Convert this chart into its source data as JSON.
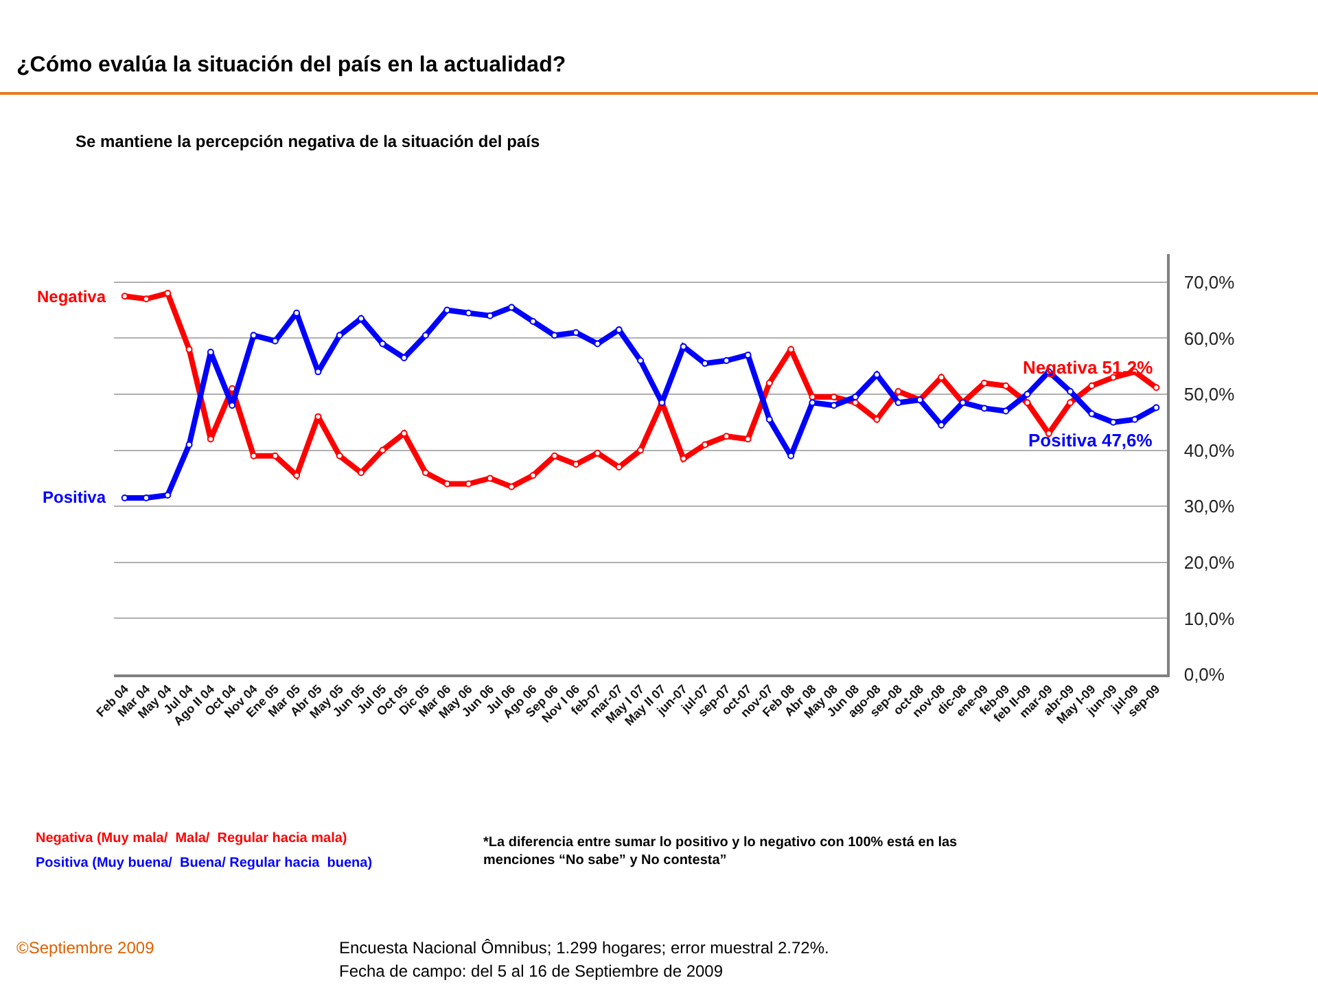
{
  "chart_data": {
    "type": "line",
    "title": "¿Cómo evalúa la situación del país en la actualidad?",
    "subtitle": "Se mantiene la percepción negativa de la situación del país",
    "categories": [
      "Feb 04",
      "Mar 04",
      "May 04",
      "Jul 04",
      "Ago II 04",
      "Oct 04",
      "Nov 04",
      "Ene 05",
      "Mar 05",
      "Abr 05",
      "May 05",
      "Jun 05",
      "Jul 05",
      "Oct 05",
      "Dic 05",
      "Mar 06",
      "May 06",
      "Jun 06",
      "Jul 06",
      "Ago 06",
      "Sep 06",
      "Nov I 06",
      "feb-07",
      "mar-07",
      "May I 07",
      "May II 07",
      "jun-07",
      "jul-07",
      "sep-07",
      "oct-07",
      "nov-07",
      "Feb 08",
      "Abr 08",
      "May 08",
      "Jun 08",
      "ago-08",
      "sep-08",
      "oct-08",
      "nov-08",
      "dic-08",
      "ene-09",
      "feb-09",
      "feb II-09",
      "mar-09",
      "abr-09",
      "May I-09",
      "jun-09",
      "jul-09",
      "sep-09"
    ],
    "series": [
      {
        "name": "Negativa",
        "color": "#ff0000",
        "values": [
          67.5,
          67,
          68,
          58,
          42,
          51,
          39,
          39,
          35.5,
          46,
          39,
          36,
          40,
          43,
          36,
          34,
          34,
          35,
          33.5,
          35.5,
          39,
          37.5,
          39.5,
          37,
          40,
          48.5,
          38.5,
          41,
          42.5,
          42,
          52,
          58,
          49.5,
          49.5,
          48.5,
          45.5,
          50.5,
          49,
          53,
          48.5,
          52,
          51.5,
          48.5,
          43,
          48.5,
          51.5,
          53,
          54,
          51.2
        ]
      },
      {
        "name": "Positiva",
        "color": "#0000ff",
        "values": [
          31.5,
          31.5,
          32,
          41,
          57.5,
          48,
          60.5,
          59.5,
          64.5,
          54,
          60.5,
          63.5,
          59,
          56.5,
          60.5,
          65,
          64.5,
          64,
          65.5,
          63,
          60.5,
          61,
          59,
          61.5,
          56,
          48.5,
          58.5,
          55.5,
          56,
          57,
          45.5,
          39,
          48.5,
          48,
          49.5,
          53.5,
          48.5,
          49,
          44.5,
          48.5,
          47.5,
          47,
          50,
          54,
          50.5,
          46.5,
          45,
          45.5,
          47.6
        ]
      }
    ],
    "ylim": [
      0,
      75
    ],
    "yticks": [
      {
        "value": 0,
        "label": "0,0%"
      },
      {
        "value": 10,
        "label": "10,0%"
      },
      {
        "value": 20,
        "label": "20,0%"
      },
      {
        "value": 30,
        "label": "30,0%"
      },
      {
        "value": 40,
        "label": "40,0%"
      },
      {
        "value": 50,
        "label": "50,0%"
      },
      {
        "value": 60,
        "label": "60,0%"
      },
      {
        "value": 70,
        "label": "70,0%"
      }
    ],
    "grid": "y",
    "legend": false,
    "marker": "circle",
    "line_style": "solid",
    "annotations": [
      {
        "text": "Negativa 51,2%",
        "x": "sep-09",
        "y": 51.2
      },
      {
        "text": "Positiva 47,6%",
        "x": "sep-09",
        "y": 47.6
      },
      "Negativa (Muy mala/  Mala/  Regular hacia mala)",
      "Positiva (Muy buena/  Buena/ Regular hacia  buena)",
      "*La diferencia entre sumar lo positivo y lo negativo con 100% está en las menciones “No sabe” y No contesta”",
      "©Septiembre 2009",
      "Encuesta Nacional Ômnibus; 1.299 hogares; error muestral 2.72%.",
      "Fecha de campo: del 5 al 16 de Septiembre de 2009"
    ]
  }
}
